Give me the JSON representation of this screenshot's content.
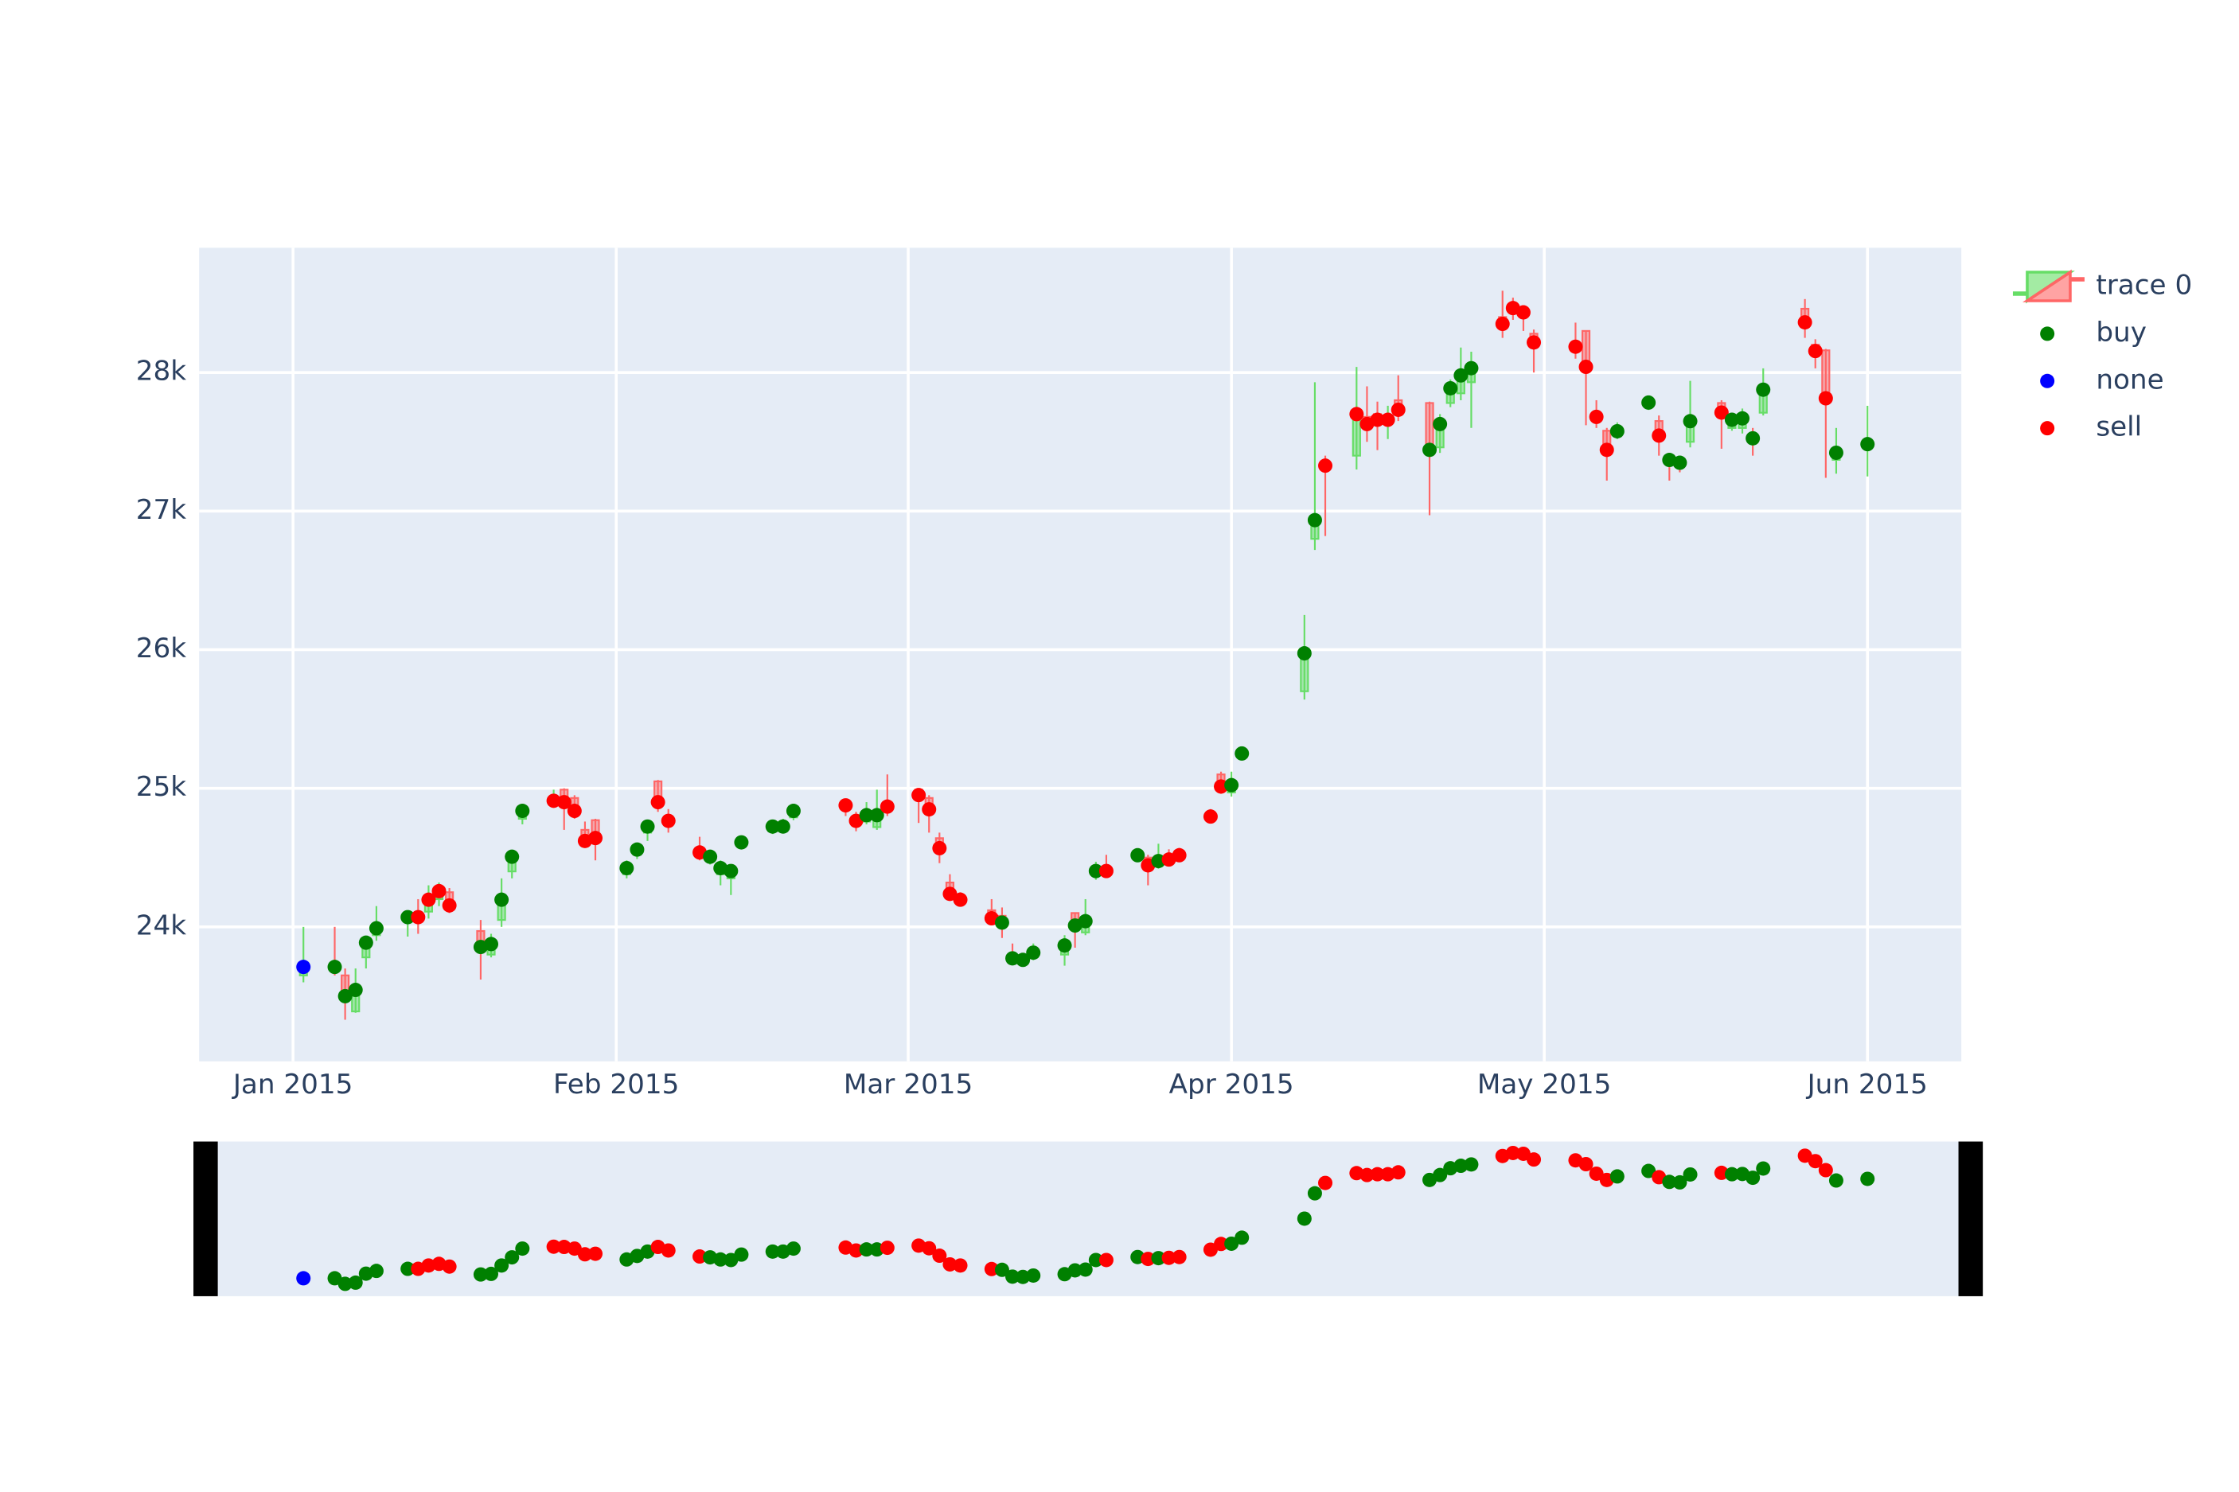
{
  "chart_data": {
    "type": "candlestick",
    "name": "trace 0",
    "increasing_color": "#66dd66",
    "decreasing_color": "#ff6666",
    "x": [
      "2015-01-02",
      "2015-01-05",
      "2015-01-06",
      "2015-01-07",
      "2015-01-08",
      "2015-01-09",
      "2015-01-12",
      "2015-01-13",
      "2015-01-14",
      "2015-01-15",
      "2015-01-16",
      "2015-01-19",
      "2015-01-20",
      "2015-01-21",
      "2015-01-22",
      "2015-01-23",
      "2015-01-26",
      "2015-01-27",
      "2015-01-28",
      "2015-01-29",
      "2015-01-30",
      "2015-02-02",
      "2015-02-03",
      "2015-02-04",
      "2015-02-05",
      "2015-02-06",
      "2015-02-09",
      "2015-02-10",
      "2015-02-11",
      "2015-02-12",
      "2015-02-13",
      "2015-02-16",
      "2015-02-17",
      "2015-02-18",
      "2015-02-23",
      "2015-02-24",
      "2015-02-25",
      "2015-02-26",
      "2015-02-27",
      "2015-03-02",
      "2015-03-03",
      "2015-03-04",
      "2015-03-05",
      "2015-03-06",
      "2015-03-09",
      "2015-03-10",
      "2015-03-11",
      "2015-03-12",
      "2015-03-13",
      "2015-03-16",
      "2015-03-17",
      "2015-03-18",
      "2015-03-19",
      "2015-03-20",
      "2015-03-23",
      "2015-03-24",
      "2015-03-25",
      "2015-03-26",
      "2015-03-27",
      "2015-03-30",
      "2015-03-31",
      "2015-04-01",
      "2015-04-02",
      "2015-04-08",
      "2015-04-09",
      "2015-04-10",
      "2015-04-13",
      "2015-04-14",
      "2015-04-15",
      "2015-04-16",
      "2015-04-17",
      "2015-04-20",
      "2015-04-21",
      "2015-04-22",
      "2015-04-23",
      "2015-04-24",
      "2015-04-27",
      "2015-04-28",
      "2015-04-29",
      "2015-04-30",
      "2015-05-04",
      "2015-05-05",
      "2015-05-06",
      "2015-05-07",
      "2015-05-08",
      "2015-05-11",
      "2015-05-12",
      "2015-05-13",
      "2015-05-14",
      "2015-05-15",
      "2015-05-18",
      "2015-05-19",
      "2015-05-20",
      "2015-05-21",
      "2015-05-22",
      "2015-05-26",
      "2015-05-27",
      "2015-05-28",
      "2015-05-29",
      "2015-06-01"
    ],
    "open": [
      23650,
      23720,
      23650,
      23390,
      23780,
      23940,
      24050,
      24100,
      24110,
      24200,
      24250,
      23970,
      23800,
      24050,
      24400,
      24780,
      24880,
      24990,
      24930,
      24700,
      24770,
      24380,
      24520,
      24680,
      25050,
      24800,
      24560,
      24480,
      24380,
      24350,
      24580,
      24690,
      24700,
      24790,
      24900,
      24790,
      24760,
      24720,
      24880,
      24990,
      24930,
      24640,
      24320,
      24210,
      24120,
      24080,
      23800,
      23790,
      23780,
      23800,
      24100,
      23960,
      24380,
      24430,
      24510,
      24500,
      24440,
      24520,
      24540,
      24820,
      25100,
      24970,
      25230,
      25700,
      26800,
      27350,
      27400,
      27680,
      27700,
      27640,
      27800,
      27780,
      27460,
      27780,
      27850,
      27930,
      28400,
      28480,
      28450,
      28280,
      28220,
      28300,
      27700,
      27580,
      27540,
      27780,
      27650,
      27400,
      27380,
      27500,
      27780,
      27600,
      27600,
      27550,
      27710,
      28460,
      28200,
      28160,
      27370,
      27450
    ],
    "high": [
      24000,
      24000,
      23700,
      23700,
      23930,
      24150,
      24120,
      24200,
      24300,
      24320,
      24280,
      24050,
      23950,
      24350,
      24550,
      24880,
      24990,
      25000,
      24950,
      24760,
      24780,
      24480,
      24600,
      24760,
      25060,
      24850,
      24650,
      24550,
      24480,
      24450,
      24660,
      24760,
      24780,
      24880,
      24900,
      24830,
      24900,
      24990,
      25100,
      25000,
      24950,
      24680,
      24380,
      24250,
      24200,
      24140,
      23880,
      23800,
      23880,
      23940,
      24100,
      24200,
      24470,
      24520,
      24560,
      24520,
      24600,
      24560,
      24570,
      24850,
      25120,
      25120,
      25300,
      26250,
      27930,
      27400,
      28040,
      27900,
      27790,
      27760,
      27980,
      27790,
      27700,
      27950,
      28180,
      28150,
      28590,
      28540,
      28480,
      28310,
      28360,
      28300,
      27800,
      27600,
      27640,
      27830,
      27690,
      27420,
      27400,
      27940,
      27800,
      27700,
      27740,
      27600,
      28030,
      28530,
      28240,
      28170,
      27600,
      27760
    ],
    "low": [
      23600,
      23650,
      23330,
      23380,
      23700,
      23900,
      23930,
      23950,
      24060,
      24150,
      24100,
      23620,
      23780,
      24000,
      24350,
      24740,
      24860,
      24700,
      24780,
      24580,
      24480,
      24350,
      24490,
      24620,
      24830,
      24680,
      24480,
      24450,
      24300,
      24230,
      24560,
      24670,
      24690,
      24770,
      24800,
      24690,
      24740,
      24700,
      24800,
      24750,
      24680,
      24460,
      24200,
      24160,
      24020,
      23920,
      23740,
      23720,
      23760,
      23720,
      23850,
      23940,
      24340,
      24380,
      24470,
      24300,
      24420,
      24440,
      24480,
      24770,
      24960,
      24940,
      25200,
      25640,
      26720,
      26820,
      27300,
      27500,
      27440,
      27520,
      27650,
      26970,
      27420,
      27750,
      27800,
      27600,
      28250,
      28380,
      28300,
      28000,
      28100,
      27620,
      27600,
      27220,
      27520,
      27730,
      27400,
      27220,
      27280,
      27460,
      27450,
      27580,
      27560,
      27400,
      27690,
      28250,
      28030,
      27240,
      27270,
      27250
    ],
    "close": [
      23711,
      23711,
      23500,
      23545,
      23886,
      23990,
      24070,
      24070,
      24196,
      24258,
      24155,
      23855,
      23876,
      24196,
      24506,
      24837,
      24910,
      24900,
      24837,
      24620,
      24641,
      24424,
      24558,
      24724,
      24900,
      24765,
      24537,
      24506,
      24424,
      24403,
      24610,
      24724,
      24724,
      24837,
      24877,
      24765,
      24806,
      24806,
      24868,
      24951,
      24848,
      24568,
      24238,
      24196,
      24062,
      24031,
      23773,
      23762,
      23814,
      23866,
      24010,
      24041,
      24403,
      24403,
      24517,
      24444,
      24475,
      24486,
      24517,
      24796,
      25013,
      25023,
      25251,
      25974,
      26935,
      27328,
      27700,
      27628,
      27659,
      27659,
      27731,
      27442,
      27628,
      27886,
      27979,
      28031,
      28351,
      28465,
      28434,
      28217,
      28186,
      28041,
      27680,
      27442,
      27576,
      27783,
      27545,
      27369,
      27349,
      27649,
      27711,
      27659,
      27669,
      27525,
      27876,
      28362,
      28155,
      27814,
      27421,
      27483
    ],
    "markers": {
      "signal": [
        "none",
        "buy",
        "buy",
        "buy",
        "buy",
        "buy",
        "buy",
        "sell",
        "sell",
        "sell",
        "sell",
        "buy",
        "buy",
        "buy",
        "buy",
        "buy",
        "sell",
        "sell",
        "sell",
        "sell",
        "sell",
        "buy",
        "buy",
        "buy",
        "sell",
        "sell",
        "sell",
        "buy",
        "buy",
        "buy",
        "buy",
        "buy",
        "buy",
        "buy",
        "sell",
        "sell",
        "buy",
        "buy",
        "sell",
        "sell",
        "sell",
        "sell",
        "sell",
        "sell",
        "sell",
        "buy",
        "buy",
        "buy",
        "buy",
        "buy",
        "buy",
        "buy",
        "buy",
        "sell",
        "buy",
        "sell",
        "buy",
        "sell",
        "sell",
        "sell",
        "sell",
        "buy",
        "buy",
        "buy",
        "buy",
        "sell",
        "sell",
        "sell",
        "sell",
        "sell",
        "sell",
        "buy",
        "buy",
        "buy",
        "buy",
        "buy",
        "sell",
        "sell",
        "sell",
        "sell",
        "sell",
        "sell",
        "sell",
        "sell",
        "buy",
        "buy",
        "sell",
        "buy",
        "buy",
        "buy",
        "sell",
        "buy",
        "buy",
        "buy",
        "buy",
        "sell",
        "sell",
        "sell",
        "buy",
        "buy"
      ],
      "series": [
        {
          "name": "buy",
          "color": "green"
        },
        {
          "name": "none",
          "color": "blue"
        },
        {
          "name": "sell",
          "color": "red"
        }
      ]
    },
    "xlim": [
      "2014-12-23",
      "2015-06-10"
    ],
    "xticks": [
      {
        "value": "2015-01-01",
        "label": "Jan 2015"
      },
      {
        "value": "2015-02-01",
        "label": "Feb 2015"
      },
      {
        "value": "2015-03-01",
        "label": "Mar 2015"
      },
      {
        "value": "2015-04-01",
        "label": "Apr 2015"
      },
      {
        "value": "2015-05-01",
        "label": "May 2015"
      },
      {
        "value": "2015-06-01",
        "label": "Jun 2015"
      }
    ],
    "ylim": [
      23030,
      28900
    ],
    "yticks": [
      {
        "value": 24000,
        "label": "24k"
      },
      {
        "value": 25000,
        "label": "25k"
      },
      {
        "value": 26000,
        "label": "26k"
      },
      {
        "value": 27000,
        "label": "27k"
      },
      {
        "value": 28000,
        "label": "28k"
      }
    ],
    "grid": true,
    "rangeslider": true
  }
}
